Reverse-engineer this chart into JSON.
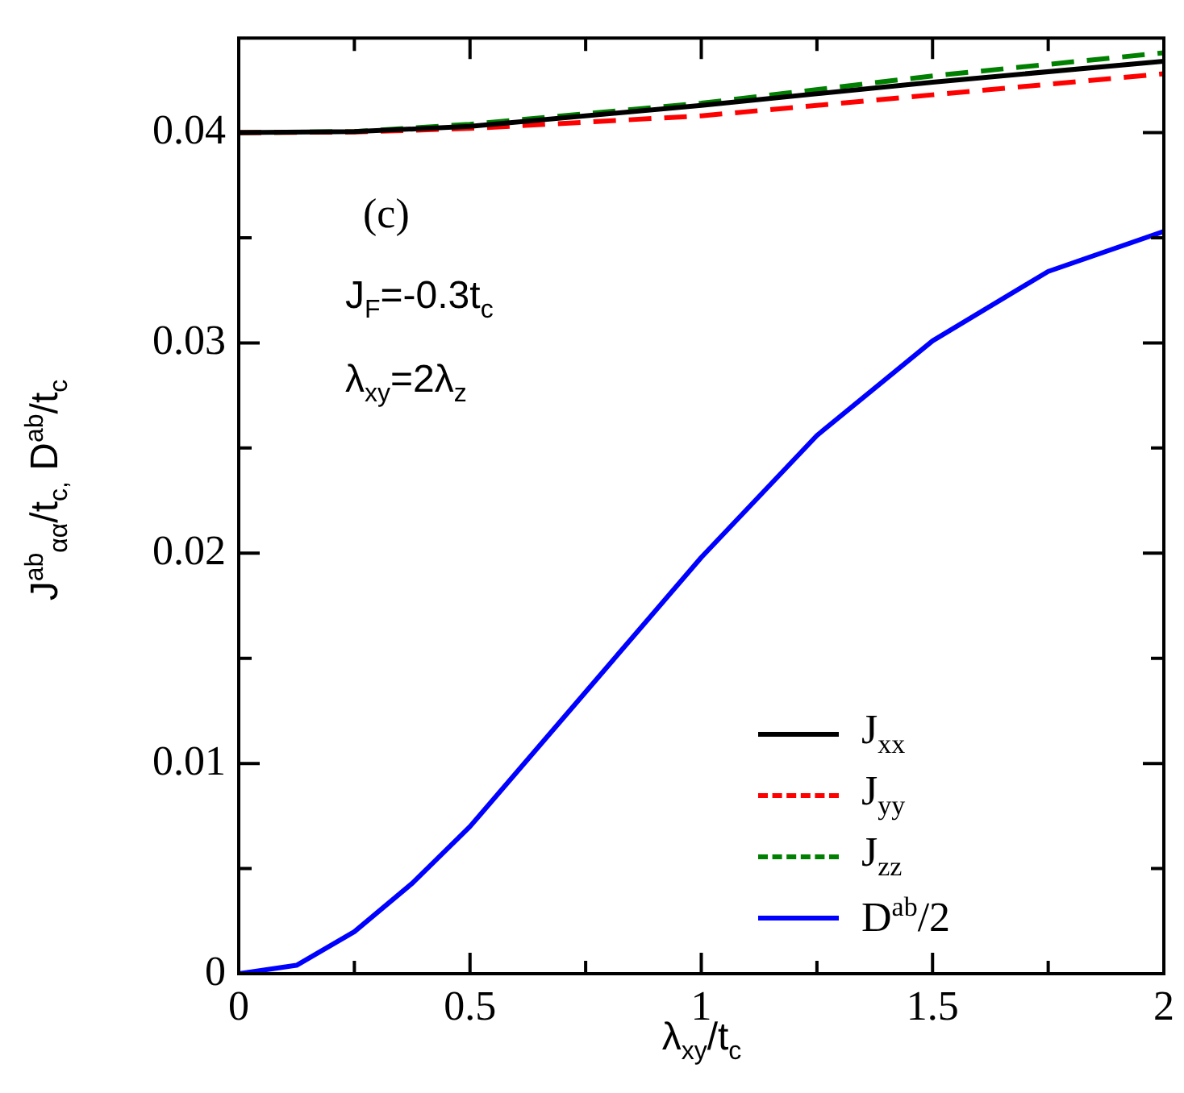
{
  "chart_data": {
    "type": "line",
    "xlabel": "λ$_{xy}$/t$_{c}$",
    "ylabel": "J$^{ab}$$_{αα}$/t$_{c,}$ D$^{ab}$/t$_{c}$",
    "annotations": [
      "(c)",
      "J$_{F}$=-0.3t$_{c}$",
      "λ$_{xy}$=2λ$_{z}$"
    ],
    "xlim": [
      0,
      2
    ],
    "ylim": [
      0,
      0.0445
    ],
    "xticks": [
      0,
      {
        "value": 0.25,
        "label": null
      },
      0.5,
      {
        "value": 0.75,
        "label": null
      },
      1,
      {
        "value": 1.25,
        "label": null
      },
      1.5,
      {
        "value": 1.75,
        "label": null
      },
      2
    ],
    "yticks": [
      0,
      {
        "value": 0.005,
        "label": null
      },
      0.01,
      {
        "value": 0.015,
        "label": null
      },
      0.02,
      {
        "value": 0.025,
        "label": null
      },
      0.03,
      {
        "value": 0.035,
        "label": null
      },
      0.04
    ],
    "grid": false,
    "legend": "bottom right",
    "marker": "none",
    "series": [
      {
        "name": "J$_{xx}$",
        "color": "#000000",
        "line_style": "solid",
        "x": [
          0,
          0.25,
          0.5,
          1,
          1.5,
          2
        ],
        "values": [
          0.04,
          0.04005,
          0.0403,
          0.0413,
          0.0424,
          0.0434
        ]
      },
      {
        "name": "J$_{yy}$",
        "color": "#ff0000",
        "line_style": "dashed",
        "x": [
          0,
          0.25,
          0.5,
          1,
          1.5,
          2
        ],
        "values": [
          0.04,
          0.04003,
          0.0402,
          0.0408,
          0.0418,
          0.0428
        ]
      },
      {
        "name": "J$_{zz}$",
        "color": "#008000",
        "line_style": "dashed",
        "x": [
          0,
          0.25,
          0.5,
          1,
          1.5,
          2
        ],
        "values": [
          0.04,
          0.04005,
          0.0404,
          0.0414,
          0.0427,
          0.0438
        ]
      },
      {
        "name": "D$^{ab}$/2",
        "color": "#0000ff",
        "line_style": "solid",
        "x": [
          0,
          0.125,
          0.25,
          0.375,
          0.5,
          0.75,
          1,
          1.25,
          1.5,
          1.75,
          2
        ],
        "values": [
          0,
          0.0004,
          0.002,
          0.0043,
          0.007,
          0.0134,
          0.0198,
          0.0256,
          0.0301,
          0.0334,
          0.0353
        ]
      }
    ]
  }
}
